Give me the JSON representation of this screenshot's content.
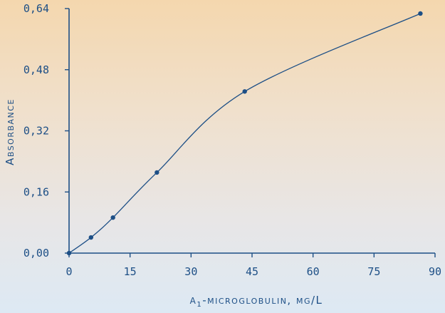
{
  "chart_data": {
    "type": "scatter",
    "xlabel_greek": "α",
    "xlabel_sub": "1",
    "xlabel_rest": "-microglobulin, mg/L",
    "ylabel": "Absorbance",
    "xlim": [
      0,
      90
    ],
    "ylim": [
      0,
      0.64
    ],
    "x_ticks": [
      {
        "value": 0,
        "label": "0"
      },
      {
        "value": 15,
        "label": "15"
      },
      {
        "value": 30,
        "label": "30"
      },
      {
        "value": 45,
        "label": "45"
      },
      {
        "value": 60,
        "label": "60"
      },
      {
        "value": 75,
        "label": "75"
      },
      {
        "value": 90,
        "label": "90"
      }
    ],
    "y_ticks": [
      {
        "value": 0.0,
        "label": "0,00"
      },
      {
        "value": 0.16,
        "label": "0,16"
      },
      {
        "value": 0.32,
        "label": "0,32"
      },
      {
        "value": 0.48,
        "label": "0,48"
      },
      {
        "value": 0.64,
        "label": "0,64"
      }
    ],
    "points": [
      {
        "x": 0,
        "y": 0.0
      },
      {
        "x": 5.4,
        "y": 0.041
      },
      {
        "x": 10.8,
        "y": 0.093
      },
      {
        "x": 21.6,
        "y": 0.211
      },
      {
        "x": 43.2,
        "y": 0.423
      },
      {
        "x": 86.4,
        "y": 0.627
      }
    ],
    "grid": false,
    "legend": "none",
    "colors": {
      "line": "#1d4f86",
      "text": "#1d4f86",
      "background_top": "#f4d7ae",
      "background_bottom": "#dde9f4"
    }
  }
}
